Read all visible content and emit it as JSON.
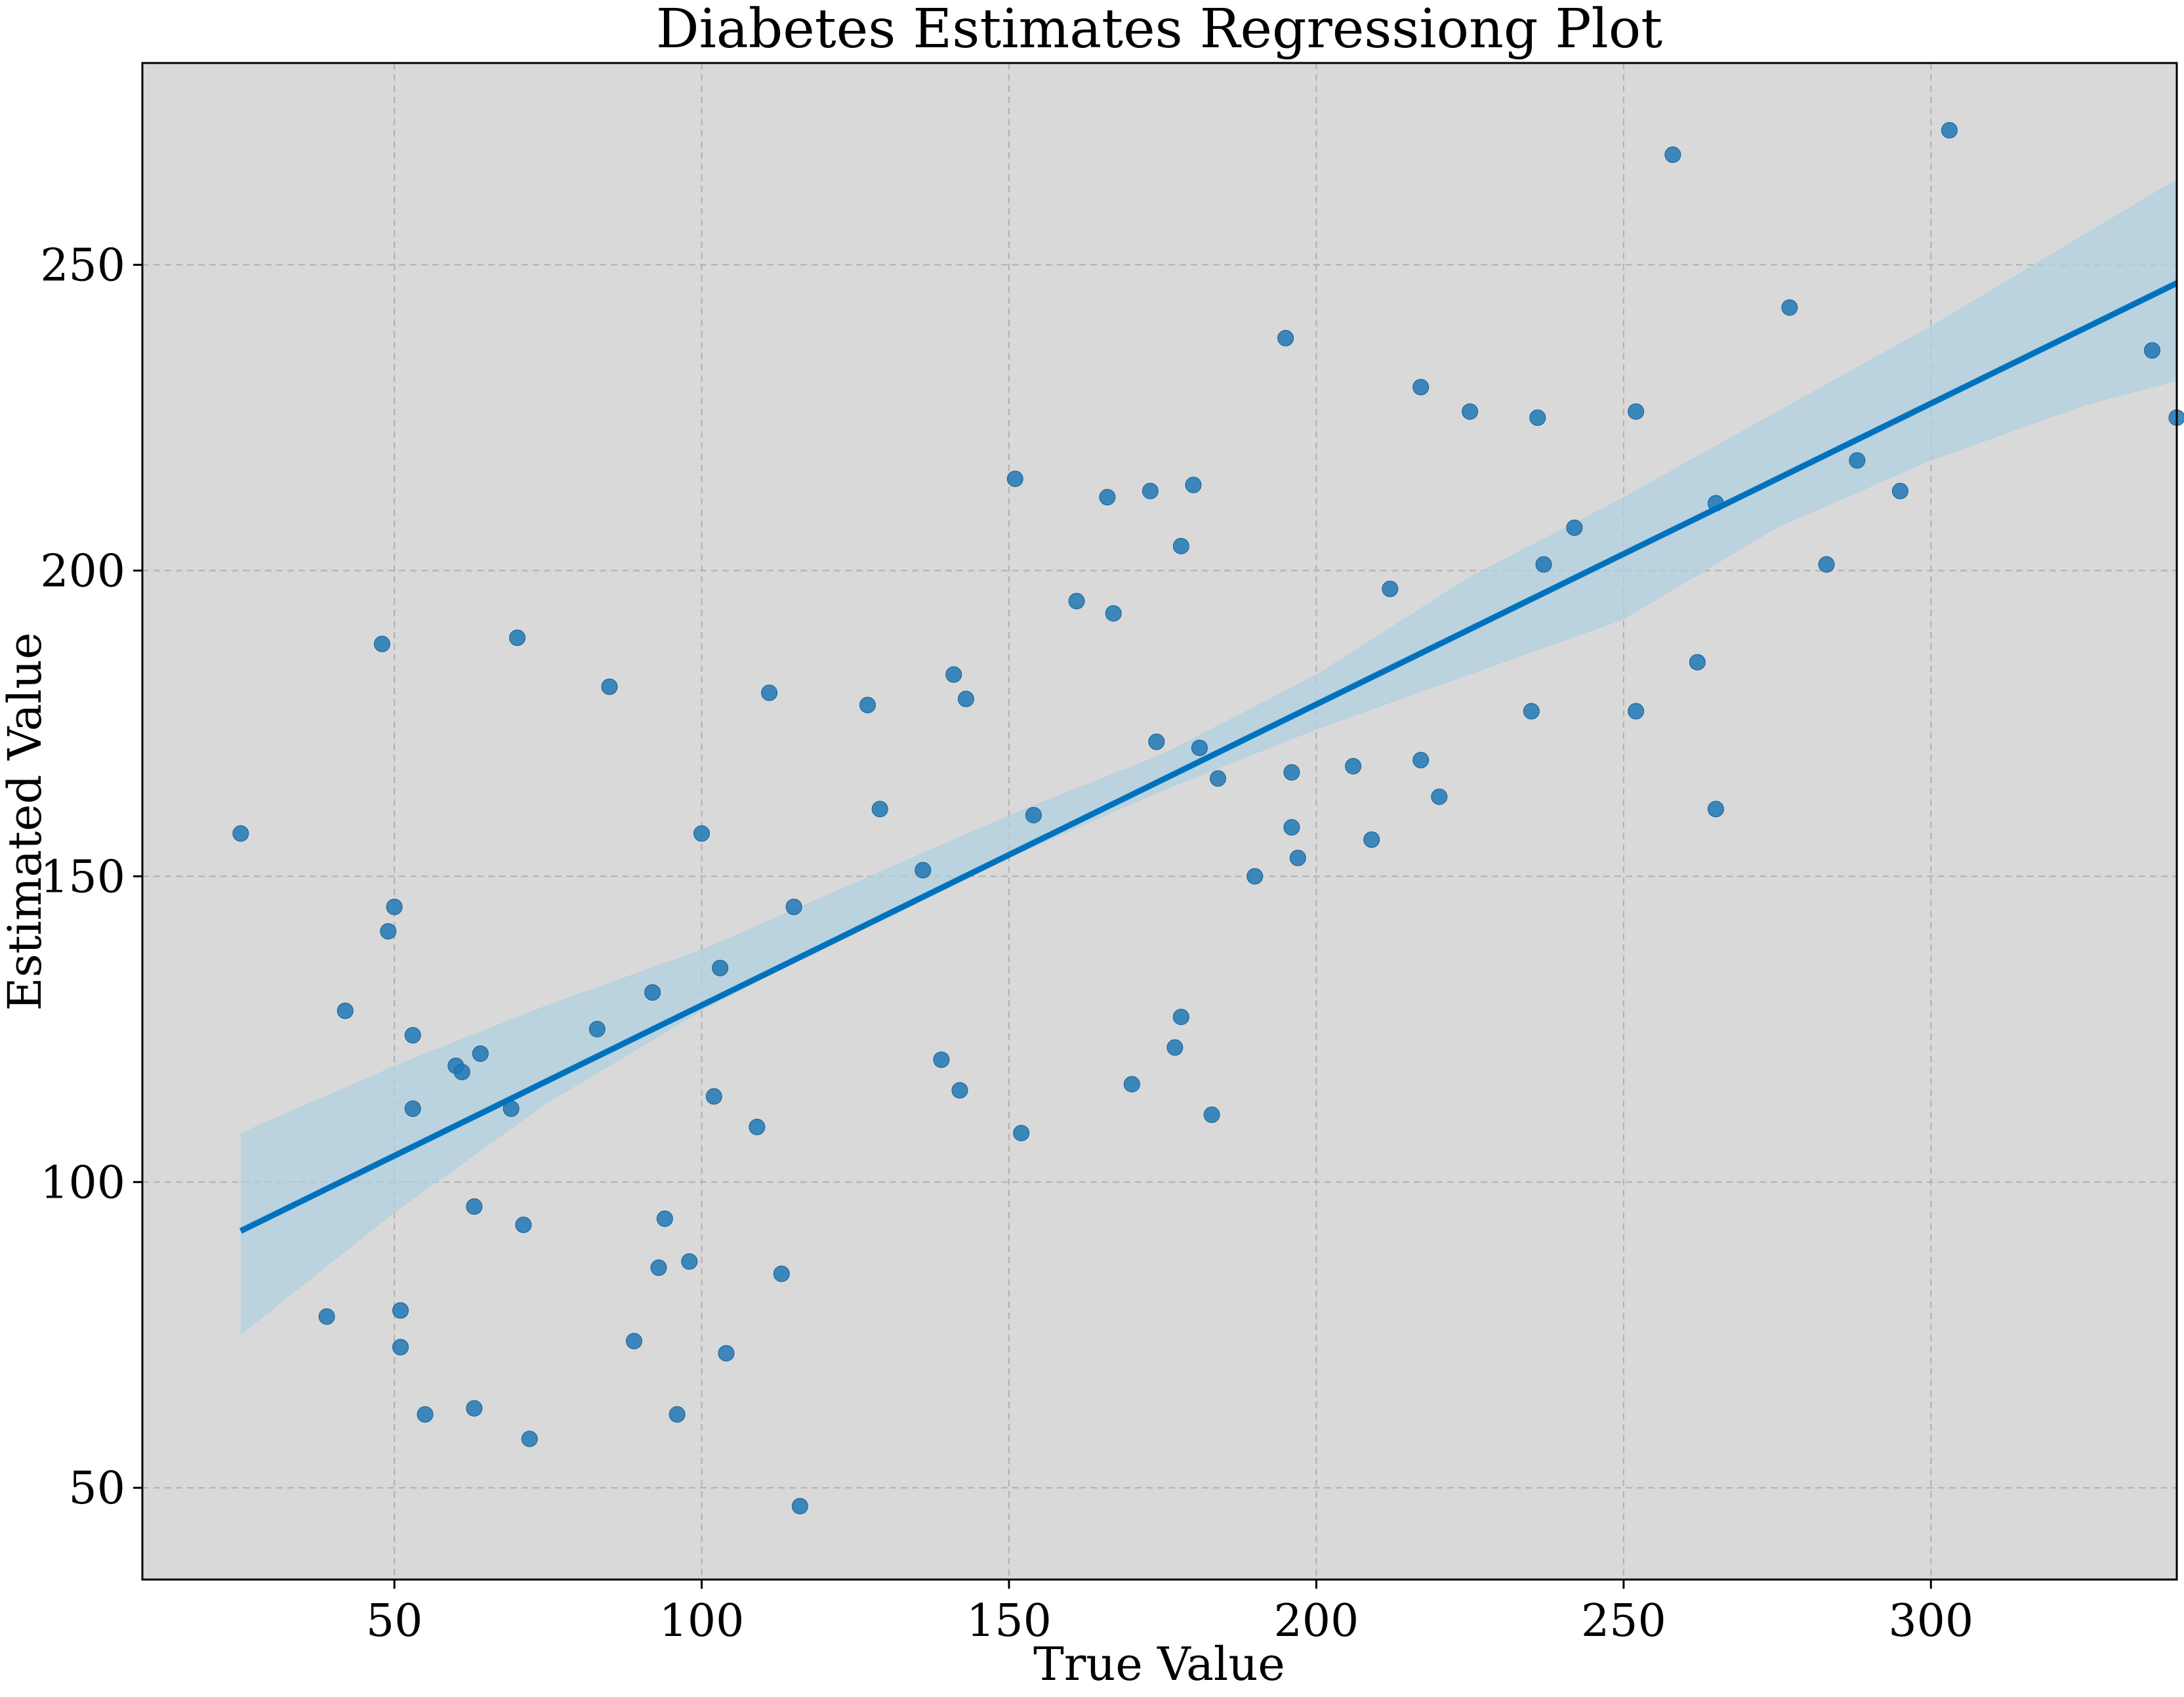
{
  "chart_data": {
    "type": "scatter",
    "title": "Diabetes Estimates Regressiong Plot",
    "xlabel": "True Value",
    "ylabel": "Estimated Value",
    "xlim": [
      9,
      340
    ],
    "ylim": [
      35,
      283
    ],
    "xticks": [
      50,
      100,
      150,
      200,
      250,
      300
    ],
    "yticks": [
      50,
      100,
      150,
      200,
      250
    ],
    "grid": true,
    "colors": {
      "background": "#d9d9d9",
      "points": "#1f77b4",
      "line": "#0072bd",
      "band": "#b0cfe0",
      "grid": "#b0b0b0"
    },
    "series": [
      {
        "type": "scatter",
        "points": [
          [
            25,
            157
          ],
          [
            39,
            78
          ],
          [
            42,
            128
          ],
          [
            48,
            188
          ],
          [
            49,
            141
          ],
          [
            50,
            145
          ],
          [
            51,
            79
          ],
          [
            51,
            73
          ],
          [
            53,
            124
          ],
          [
            53,
            112
          ],
          [
            55,
            62
          ],
          [
            60,
            119
          ],
          [
            61,
            118
          ],
          [
            63,
            96
          ],
          [
            63,
            63
          ],
          [
            64,
            121
          ],
          [
            69,
            112
          ],
          [
            70,
            189
          ],
          [
            71,
            93
          ],
          [
            72,
            58
          ],
          [
            83,
            125
          ],
          [
            85,
            181
          ],
          [
            89,
            74
          ],
          [
            92,
            131
          ],
          [
            93,
            86
          ],
          [
            94,
            94
          ],
          [
            96,
            62
          ],
          [
            98,
            87
          ],
          [
            100,
            157
          ],
          [
            102,
            114
          ],
          [
            103,
            135
          ],
          [
            104,
            72
          ],
          [
            109,
            109
          ],
          [
            111,
            180
          ],
          [
            113,
            85
          ],
          [
            115,
            145
          ],
          [
            116,
            47
          ],
          [
            127,
            178
          ],
          [
            129,
            161
          ],
          [
            136,
            151
          ],
          [
            139,
            120
          ],
          [
            141,
            183
          ],
          [
            142,
            115
          ],
          [
            143,
            179
          ],
          [
            151,
            215
          ],
          [
            152,
            108
          ],
          [
            154,
            160
          ],
          [
            161,
            195
          ],
          [
            166,
            212
          ],
          [
            167,
            193
          ],
          [
            170,
            116
          ],
          [
            173,
            213
          ],
          [
            174,
            172
          ],
          [
            177,
            122
          ],
          [
            178,
            127
          ],
          [
            178,
            204
          ],
          [
            180,
            214
          ],
          [
            181,
            171
          ],
          [
            183,
            111
          ],
          [
            184,
            166
          ],
          [
            190,
            150
          ],
          [
            195,
            238
          ],
          [
            196,
            158
          ],
          [
            196,
            167
          ],
          [
            197,
            153
          ],
          [
            206,
            168
          ],
          [
            209,
            156
          ],
          [
            212,
            197
          ],
          [
            217,
            230
          ],
          [
            217,
            169
          ],
          [
            220,
            163
          ],
          [
            225,
            226
          ],
          [
            235,
            177
          ],
          [
            236,
            225
          ],
          [
            237,
            201
          ],
          [
            242,
            207
          ],
          [
            252,
            177
          ],
          [
            252,
            226
          ],
          [
            258,
            268
          ],
          [
            262,
            185
          ],
          [
            265,
            211
          ],
          [
            265,
            161
          ],
          [
            277,
            243
          ],
          [
            283,
            201
          ],
          [
            288,
            218
          ],
          [
            295,
            213
          ],
          [
            303,
            272
          ],
          [
            336,
            236
          ],
          [
            340,
            225
          ]
        ]
      },
      {
        "type": "line",
        "x": [
          25,
          340
        ],
        "y": [
          92,
          247
        ]
      },
      {
        "type": "band",
        "x": [
          25,
          50,
          75,
          100,
          125,
          150,
          175,
          200,
          225,
          250,
          275,
          300,
          325,
          340
        ],
        "lower": [
          75,
          95,
          113,
          128,
          141,
          153,
          164,
          174,
          183,
          192,
          207,
          218,
          227,
          231
        ],
        "upper": [
          108,
          119,
          129,
          138,
          149,
          160,
          170,
          183,
          199,
          212,
          226,
          240,
          255,
          264
        ]
      }
    ]
  }
}
